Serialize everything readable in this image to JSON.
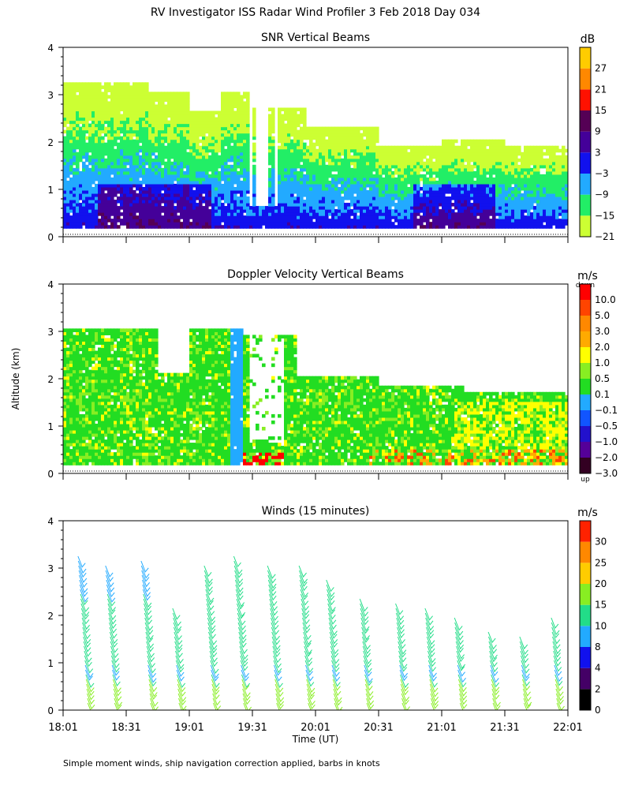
{
  "page": {
    "title": "RV Investigator ISS Radar Wind Profiler    3 Feb 2018 Day 034",
    "footer": "Simple moment winds, ship navigation correction applied, barbs in knots",
    "ylabel": "Altitude (km)",
    "xlabel": "Time (UT)"
  },
  "chart_data": [
    {
      "type": "heatmap",
      "title": "SNR Vertical Beams",
      "units": "dB",
      "ylim": [
        0,
        4
      ],
      "yticks": [
        "0",
        "1",
        "2",
        "3",
        "4"
      ],
      "colorbar_ticks": [
        "27",
        "21",
        "15",
        "9",
        "3",
        "−3",
        "−9",
        "−15",
        "−21"
      ],
      "colorbar_colors": [
        "#ccff33",
        "#22ee66",
        "#22aaff",
        "#1111ee",
        "#440099",
        "#550055",
        "#ff1100",
        "#ff8800",
        "#ffcc00"
      ]
    },
    {
      "type": "heatmap",
      "title": "Doppler Velocity Vertical Beams",
      "units": "m/s",
      "ylim": [
        0,
        4
      ],
      "yticks": [
        "0",
        "1",
        "2",
        "3",
        "4"
      ],
      "colorbar_top": "down",
      "colorbar_bottom": "up",
      "colorbar_ticks": [
        "10.0",
        "5.0",
        "3.0",
        "2.0",
        "1.0",
        "0.5",
        "0.1",
        "−0.1",
        "−0.5",
        "−1.0",
        "−2.0",
        "−3.0"
      ],
      "colorbar_colors": [
        "#330022",
        "#550099",
        "#2211cc",
        "#1155ff",
        "#22aaff",
        "#22dd22",
        "#88ee22",
        "#ffff00",
        "#ffaa00",
        "#ff8800",
        "#ff4400",
        "#ff0000"
      ]
    },
    {
      "type": "scatter",
      "title": "Winds (15 minutes)",
      "units": "m/s",
      "ylim": [
        0,
        4
      ],
      "yticks": [
        "0",
        "1",
        "2",
        "3",
        "4"
      ],
      "xticks": [
        "18:01",
        "18:31",
        "19:01",
        "19:31",
        "20:01",
        "20:31",
        "21:01",
        "21:31",
        "22:01"
      ],
      "colorbar_ticks": [
        "30",
        "25",
        "20",
        "15",
        "10",
        "8",
        "4",
        "2",
        "0"
      ],
      "colorbar_colors": [
        "#000000",
        "#440066",
        "#1111ee",
        "#22aaff",
        "#22dd88",
        "#88ee22",
        "#ffcc00",
        "#ff8800",
        "#ff2200"
      ],
      "profile_times_min": [
        7,
        20,
        37,
        52,
        67,
        81,
        97,
        112,
        125,
        141,
        158,
        172,
        186,
        202,
        217,
        232
      ],
      "profile_tops_km": [
        3.3,
        3.15,
        3.2,
        2.2,
        3.1,
        3.35,
        3.15,
        3.15,
        2.85,
        2.4,
        2.3,
        2.2,
        2.0,
        1.75,
        1.6,
        2.0
      ]
    }
  ]
}
